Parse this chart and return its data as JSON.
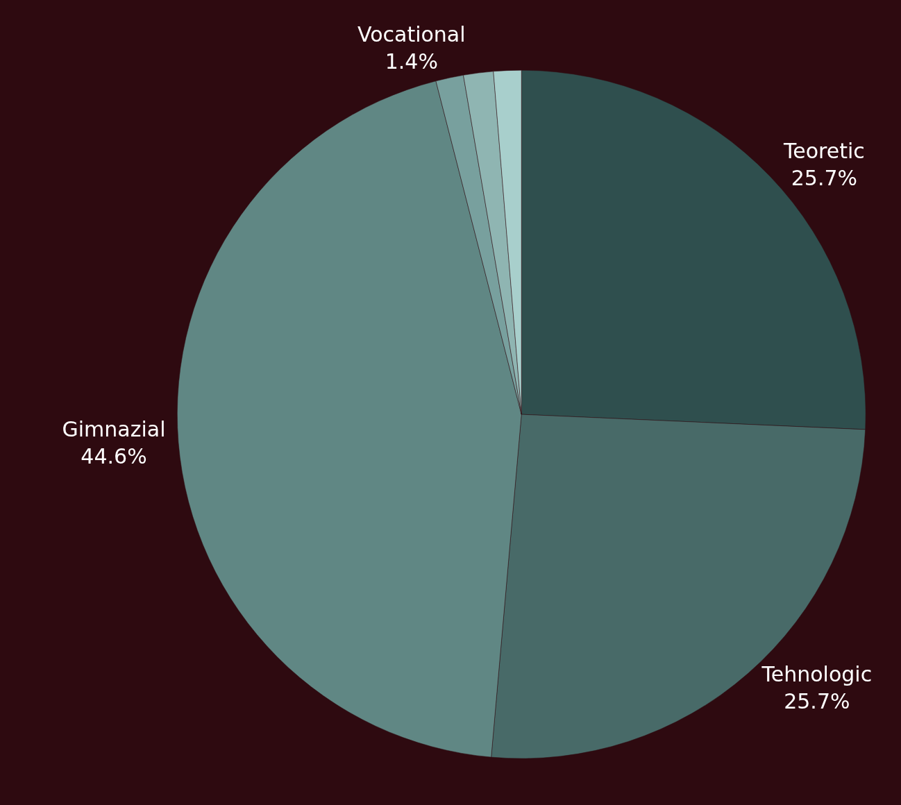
{
  "chart_data": {
    "type": "pie",
    "categories": [
      "Teoretic",
      "Tehnologic",
      "Gimnazial",
      null,
      "Vocational",
      null
    ],
    "values": [
      25.7,
      25.7,
      44.6,
      1.3,
      1.4,
      1.3
    ],
    "value_labels": [
      "25.7%",
      "25.7%",
      "44.6%",
      null,
      "1.4%",
      null
    ],
    "colors": [
      "#2f4f4e",
      "#486a68",
      "#608784",
      "#78a09e",
      "#8fb5b2",
      "#a8cfcc"
    ]
  }
}
